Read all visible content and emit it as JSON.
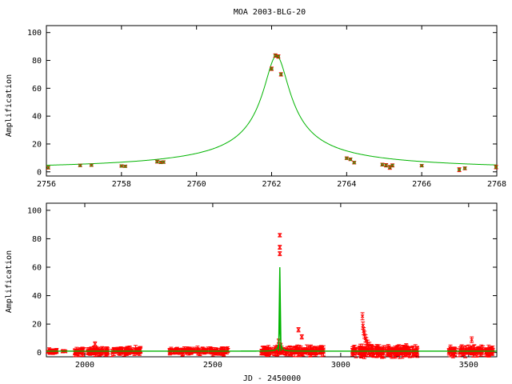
{
  "figure": {
    "title": "MOA 2003-BLG-20",
    "xlabel_bottom": "JD - 2450000"
  },
  "colors": {
    "model": "#00b400",
    "data": "#ff0000",
    "axis": "#000000"
  },
  "chart_data": [
    {
      "type": "scatter",
      "ylabel": "Amplification",
      "xlim": [
        2756,
        2768
      ],
      "ylim": [
        -3,
        105
      ],
      "xticks": [
        2756,
        2758,
        2760,
        2762,
        2764,
        2766,
        2768
      ],
      "yticks": [
        0,
        20,
        40,
        60,
        80,
        100
      ],
      "model": {
        "t0": 2762.13,
        "u0": 0.012,
        "tE": 28.5,
        "umin_floor": 0.0
      },
      "points": [
        [
          2756.05,
          3.0,
          1.0
        ],
        [
          2756.9,
          4.6,
          0.8
        ],
        [
          2757.2,
          4.8,
          0.8
        ],
        [
          2758.0,
          4.2,
          0.7
        ],
        [
          2758.1,
          4.0,
          0.7
        ],
        [
          2758.95,
          7.3,
          1.0
        ],
        [
          2759.05,
          6.8,
          0.9
        ],
        [
          2759.12,
          7.0,
          0.9
        ],
        [
          2762.0,
          74.0,
          1.2
        ],
        [
          2762.1,
          83.5,
          1.2
        ],
        [
          2762.18,
          82.8,
          1.2
        ],
        [
          2762.25,
          70.0,
          1.2
        ],
        [
          2764.0,
          9.8,
          0.9
        ],
        [
          2764.1,
          9.0,
          0.9
        ],
        [
          2764.2,
          6.6,
          0.9
        ],
        [
          2764.95,
          5.2,
          1.0
        ],
        [
          2765.05,
          4.7,
          1.2
        ],
        [
          2765.15,
          3.2,
          1.4
        ],
        [
          2765.22,
          4.6,
          1.1
        ],
        [
          2766.0,
          4.4,
          0.8
        ],
        [
          2767.0,
          1.5,
          1.4
        ],
        [
          2767.15,
          2.5,
          1.0
        ],
        [
          2767.98,
          3.4,
          1.2
        ]
      ]
    },
    {
      "type": "scatter",
      "ylabel": "Amplification",
      "xlim": [
        1850,
        3610
      ],
      "ylim": [
        -3,
        105
      ],
      "xticks": [
        2000,
        2500,
        3000,
        3500
      ],
      "yticks": [
        0,
        20,
        40,
        60,
        80,
        100
      ],
      "model": {
        "t0": 2762.13,
        "u0": 0.012,
        "tE": 28.5,
        "baseline": 1.0
      },
      "seasons": [
        {
          "start": 1855,
          "end": 1890,
          "n": 22,
          "scatter": 1.0,
          "err": 1.3
        },
        {
          "start": 1905,
          "end": 1925,
          "n": 8,
          "scatter": 0.5,
          "err": 0.7
        },
        {
          "start": 1960,
          "end": 2220,
          "n": 120,
          "scatter": 1.5,
          "err": 1.8
        },
        {
          "start": 2330,
          "end": 2560,
          "n": 110,
          "scatter": 1.2,
          "err": 1.6
        },
        {
          "start": 2690,
          "end": 2940,
          "n": 130,
          "scatter": 1.5,
          "err": 2.2
        },
        {
          "start": 3045,
          "end": 3300,
          "n": 150,
          "scatter": 1.8,
          "err": 2.5
        },
        {
          "start": 3420,
          "end": 3600,
          "n": 90,
          "scatter": 1.6,
          "err": 2.2
        }
      ],
      "spikes": [
        [
          2762.1,
          82.5,
          1.2
        ],
        [
          2762.0,
          74.0,
          1.4
        ],
        [
          2762.2,
          69.5,
          1.4
        ],
        [
          2758.0,
          8.0,
          1.5
        ],
        [
          2756.0,
          3.0,
          1.5
        ],
        [
          2765.0,
          5.0,
          1.5
        ],
        [
          3085,
          25.5,
          2.5
        ],
        [
          3087,
          19.0,
          2.5
        ],
        [
          3090,
          15.0,
          2.5
        ],
        [
          3093,
          12.5,
          2.5
        ],
        [
          3097,
          10.0,
          2.5
        ],
        [
          3100,
          8.0,
          2.5
        ],
        [
          3105,
          6.5,
          2.2
        ],
        [
          3112,
          5.0,
          2.2
        ],
        [
          2040,
          6.0,
          1.5
        ],
        [
          2835,
          16.0,
          1.5
        ],
        [
          2848,
          11.0,
          1.5
        ],
        [
          3512,
          9.0,
          2.0
        ]
      ]
    }
  ]
}
